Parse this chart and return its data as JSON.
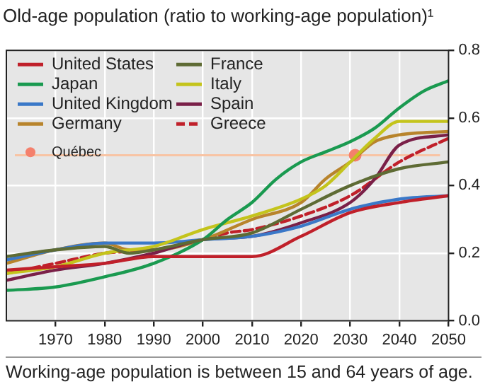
{
  "chart_data": {
    "type": "line",
    "title": "Old-age population (ratio to working-age population)¹",
    "xlim": [
      1960,
      2050
    ],
    "xticks": [
      1970,
      1980,
      1990,
      2000,
      2010,
      2020,
      2030,
      2040,
      2050
    ],
    "ylim": [
      0,
      0.8
    ],
    "yticks": [
      {
        "value": 0,
        "label": "0.0"
      },
      {
        "value": 0.2,
        "label": "0.2"
      },
      {
        "value": 0.4,
        "label": "0.4"
      },
      {
        "value": 0.6,
        "label": "0.6"
      },
      {
        "value": 0.8,
        "label": "0.8"
      }
    ],
    "grid": true,
    "legend": "top left",
    "marker": "none",
    "line_style": "solid",
    "series": [
      {
        "name": "United States",
        "color": "#c0202a",
        "x": [
          1960,
          1970,
          1980,
          1990,
          2000,
          2010,
          2020,
          2030,
          2040,
          2050
        ],
        "values": [
          0.15,
          0.16,
          0.17,
          0.19,
          0.19,
          0.19,
          0.25,
          0.32,
          0.35,
          0.37
        ]
      },
      {
        "name": "France",
        "color": "#5e6b34",
        "x": [
          1960,
          1970,
          1980,
          1985,
          1990,
          2000,
          2010,
          2020,
          2030,
          2040,
          2050
        ],
        "values": [
          0.19,
          0.21,
          0.22,
          0.2,
          0.21,
          0.24,
          0.26,
          0.33,
          0.4,
          0.45,
          0.47
        ]
      },
      {
        "name": "Japan",
        "color": "#1a9a50",
        "x": [
          1960,
          1970,
          1980,
          1990,
          2000,
          2005,
          2010,
          2015,
          2020,
          2025,
          2030,
          2035,
          2040,
          2045,
          2050
        ],
        "values": [
          0.09,
          0.1,
          0.13,
          0.17,
          0.24,
          0.3,
          0.35,
          0.42,
          0.47,
          0.5,
          0.53,
          0.57,
          0.63,
          0.68,
          0.71
        ]
      },
      {
        "name": "Italy",
        "color": "#c4c41c",
        "x": [
          1960,
          1970,
          1980,
          1990,
          2000,
          2010,
          2020,
          2025,
          2030,
          2035,
          2040,
          2050
        ],
        "values": [
          0.14,
          0.16,
          0.2,
          0.22,
          0.27,
          0.31,
          0.36,
          0.4,
          0.47,
          0.54,
          0.59,
          0.59
        ]
      },
      {
        "name": "United Kingdom",
        "color": "#3a78c8",
        "x": [
          1960,
          1970,
          1980,
          1990,
          2000,
          2010,
          2020,
          2030,
          2040,
          2050
        ],
        "values": [
          0.18,
          0.21,
          0.23,
          0.23,
          0.24,
          0.25,
          0.28,
          0.33,
          0.36,
          0.37
        ]
      },
      {
        "name": "Spain",
        "color": "#7a2048",
        "x": [
          1960,
          1970,
          1980,
          1990,
          2000,
          2010,
          2020,
          2030,
          2035,
          2040,
          2050
        ],
        "values": [
          0.12,
          0.15,
          0.17,
          0.2,
          0.24,
          0.25,
          0.29,
          0.35,
          0.42,
          0.52,
          0.55
        ]
      },
      {
        "name": "Germany",
        "color": "#b8842c",
        "x": [
          1960,
          1970,
          1980,
          1985,
          1990,
          2000,
          2010,
          2020,
          2025,
          2030,
          2035,
          2040,
          2050
        ],
        "values": [
          0.17,
          0.21,
          0.23,
          0.21,
          0.21,
          0.24,
          0.3,
          0.35,
          0.42,
          0.47,
          0.53,
          0.55,
          0.56
        ]
      },
      {
        "name": "Greece",
        "color": "#c0202a",
        "line_style": "dashed",
        "x": [
          1960,
          1970,
          1980,
          1990,
          2000,
          2005,
          2010,
          2020,
          2030,
          2040,
          2050
        ],
        "values": [
          0.14,
          0.17,
          0.2,
          0.21,
          0.24,
          0.26,
          0.27,
          0.31,
          0.37,
          0.47,
          0.54
        ]
      },
      {
        "name": "Québec",
        "type": "scatter",
        "marker": "circle",
        "color": "#f4806c",
        "x": [
          2031
        ],
        "values": [
          0.49
        ]
      }
    ],
    "ref_lines": [
      {
        "axis": "y",
        "value": 0.49,
        "color": "#f8c4a4"
      }
    ],
    "annotations": [
      "Working-age population is between 15 and 64 years of age."
    ]
  }
}
